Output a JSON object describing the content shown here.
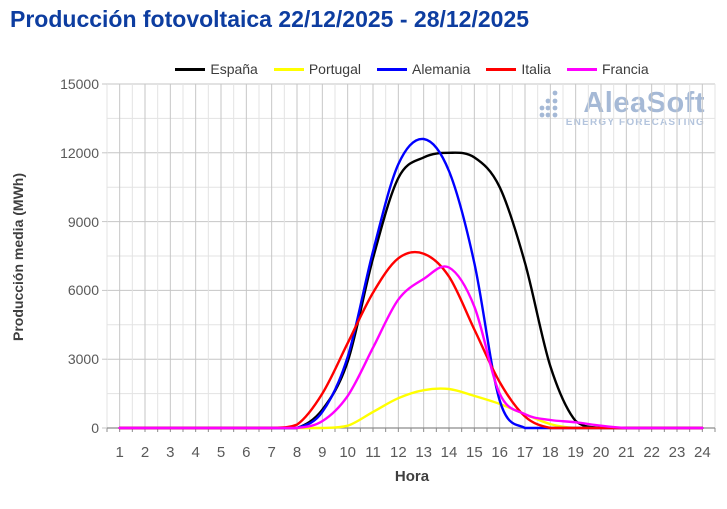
{
  "title": "Producción fotovoltaica 22/12/2025 - 28/12/2025",
  "watermark": {
    "name": "AleaSoft",
    "tagline": "ENERGY FORECASTING"
  },
  "colors": {
    "title": "#0d3da0",
    "axis_text": "#595959",
    "axis_title": "#3f3f3f",
    "grid_major": "#c6c6c6",
    "grid_minor": "#e3e3e3",
    "axis_line": "#8c8c8c",
    "watermark": "#a5b9d6",
    "watermark_tagline": "#b3c4dd"
  },
  "chart_data": {
    "type": "line",
    "title": "Producción fotovoltaica 22/12/2025 - 28/12/2025",
    "xlabel": "Hora",
    "ylabel": "Producción media (MWh)",
    "x": [
      1,
      2,
      3,
      4,
      5,
      6,
      7,
      8,
      9,
      10,
      11,
      12,
      13,
      14,
      15,
      16,
      17,
      18,
      19,
      20,
      21,
      22,
      23,
      24
    ],
    "xlim": [
      0.5,
      24.5
    ],
    "ylim": [
      0,
      15000
    ],
    "y_ticks": [
      0,
      3000,
      6000,
      9000,
      12000,
      15000
    ],
    "y_minor_step": 1500,
    "x_minor_step": 0.5,
    "grid": true,
    "legend_position": "top-center",
    "units": "MWh",
    "series": [
      {
        "name": "España",
        "color": "#000000",
        "values": [
          0,
          0,
          0,
          0,
          0,
          0,
          0,
          0,
          800,
          2900,
          7400,
          10900,
          11800,
          12000,
          11800,
          10500,
          7200,
          2700,
          300,
          0,
          0,
          0,
          0,
          0
        ]
      },
      {
        "name": "Portugal",
        "color": "#ffff00",
        "values": [
          0,
          0,
          0,
          0,
          0,
          0,
          0,
          0,
          0,
          100,
          700,
          1300,
          1650,
          1700,
          1400,
          1050,
          600,
          170,
          0,
          0,
          0,
          0,
          0,
          0
        ]
      },
      {
        "name": "Alemania",
        "color": "#0000ff",
        "values": [
          0,
          0,
          0,
          0,
          0,
          0,
          0,
          0,
          700,
          3100,
          7700,
          11500,
          12600,
          11200,
          7200,
          1200,
          0,
          0,
          0,
          0,
          0,
          0,
          0,
          0
        ]
      },
      {
        "name": "Italia",
        "color": "#ff0000",
        "values": [
          0,
          0,
          0,
          0,
          0,
          0,
          0,
          150,
          1500,
          3700,
          5900,
          7400,
          7600,
          6600,
          4300,
          2000,
          500,
          0,
          0,
          0,
          0,
          0,
          0,
          0
        ]
      },
      {
        "name": "Francia",
        "color": "#ff00ff",
        "values": [
          0,
          0,
          0,
          0,
          0,
          0,
          0,
          0,
          300,
          1400,
          3500,
          5600,
          6500,
          7000,
          5300,
          1500,
          600,
          350,
          250,
          100,
          0,
          0,
          0,
          0
        ]
      }
    ]
  }
}
